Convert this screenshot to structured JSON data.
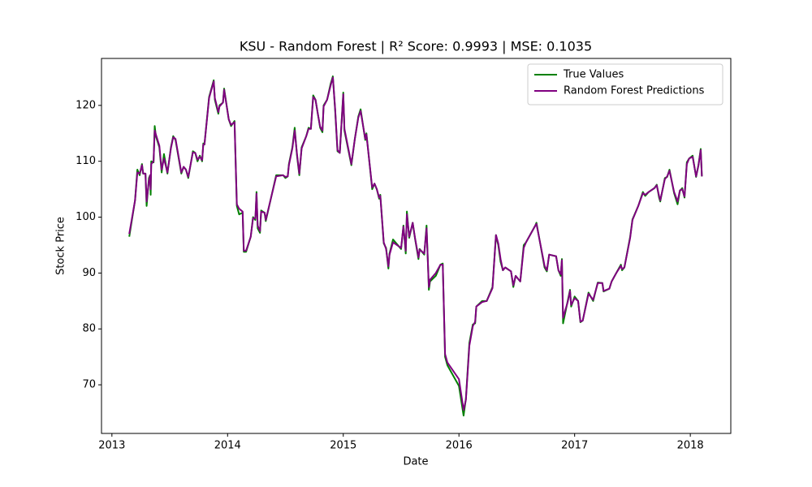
{
  "chart_data": {
    "type": "line",
    "title": "KSU - Random Forest | R² Score: 0.9993 | MSE: 0.1035",
    "x_label": "Date",
    "y_label": "Stock Price",
    "x": [
      2013.15,
      2013.2,
      2013.22,
      2013.24,
      2013.26,
      2013.27,
      2013.29,
      2013.3,
      2013.32,
      2013.33,
      2013.335,
      2013.34,
      2013.36,
      2013.37,
      2013.38,
      2013.41,
      2013.43,
      2013.45,
      2013.48,
      2013.51,
      2013.53,
      2013.55,
      2013.6,
      2013.62,
      2013.64,
      2013.66,
      2013.7,
      2013.72,
      2013.74,
      2013.76,
      2013.78,
      2013.79,
      2013.8,
      2013.84,
      2013.88,
      2013.89,
      2013.92,
      2013.93,
      2013.96,
      2013.97,
      2014.01,
      2014.03,
      2014.06,
      2014.08,
      2014.1,
      2014.13,
      2014.14,
      2014.16,
      2014.2,
      2014.22,
      2014.24,
      2014.25,
      2014.26,
      2014.28,
      2014.29,
      2014.32,
      2014.33,
      2014.42,
      2014.48,
      2014.5,
      2014.52,
      2014.53,
      2014.56,
      2014.58,
      2014.6,
      2014.62,
      2014.64,
      2014.68,
      2014.7,
      2014.72,
      2014.74,
      2014.76,
      2014.78,
      2014.8,
      2014.82,
      2014.83,
      2014.86,
      2014.89,
      2014.91,
      2014.93,
      2014.95,
      2014.97,
      2015.0,
      2015.01,
      2015.07,
      2015.1,
      2015.13,
      2015.15,
      2015.19,
      2015.2,
      2015.25,
      2015.27,
      2015.29,
      2015.31,
      2015.32,
      2015.35,
      2015.37,
      2015.39,
      2015.4,
      2015.43,
      2015.5,
      2015.52,
      2015.54,
      2015.55,
      2015.57,
      2015.6,
      2015.62,
      2015.65,
      2015.66,
      2015.7,
      2015.72,
      2015.74,
      2015.75,
      2015.8,
      2015.84,
      2015.86,
      2015.88,
      2015.9,
      2016.0,
      2016.04,
      2016.06,
      2016.09,
      2016.12,
      2016.14,
      2016.15,
      2016.2,
      2016.24,
      2016.29,
      2016.32,
      2016.34,
      2016.36,
      2016.38,
      2016.4,
      2016.45,
      2016.47,
      2016.49,
      2016.53,
      2016.56,
      2016.58,
      2016.66,
      2016.67,
      2016.74,
      2016.76,
      2016.78,
      2016.84,
      2016.86,
      2016.88,
      2016.89,
      2016.9,
      2016.94,
      2016.96,
      2016.97,
      2017.0,
      2017.03,
      2017.05,
      2017.07,
      2017.12,
      2017.16,
      2017.2,
      2017.24,
      2017.25,
      2017.3,
      2017.32,
      2017.36,
      2017.4,
      2017.41,
      2017.43,
      2017.48,
      2017.5,
      2017.55,
      2017.59,
      2017.61,
      2017.64,
      2017.69,
      2017.71,
      2017.73,
      2017.74,
      2017.78,
      2017.8,
      2017.82,
      2017.86,
      2017.89,
      2017.91,
      2017.93,
      2017.95,
      2017.97,
      2017.99,
      2018.02,
      2018.05,
      2018.07,
      2018.09,
      2018.1
    ],
    "series": [
      {
        "name": "True Values",
        "color": "#008000",
        "values": [
          96.5,
          103,
          108.5,
          107.5,
          109.5,
          107.8,
          107.8,
          102,
          107,
          107.5,
          104,
          110,
          109.8,
          116.3,
          114.5,
          112.5,
          108,
          111.3,
          107.8,
          112.5,
          114.5,
          113.8,
          107.8,
          109,
          108.5,
          107,
          111.8,
          111.5,
          110,
          111,
          110,
          113.2,
          113,
          121.5,
          124.5,
          121,
          118.5,
          120,
          120.5,
          123,
          117.5,
          116.3,
          117.2,
          102,
          100.5,
          100.8,
          93.8,
          93.8,
          96.5,
          100,
          99.5,
          104.5,
          98,
          97.2,
          101.2,
          100.8,
          99.3,
          107.5,
          107.5,
          107,
          107.3,
          109.5,
          112.5,
          116,
          111,
          107.5,
          112.5,
          114.5,
          116,
          115.8,
          121.8,
          121,
          118.5,
          116,
          115.2,
          120,
          121,
          123.8,
          125.2,
          119,
          111.8,
          111.5,
          122.3,
          115.5,
          109.3,
          114,
          118,
          119.3,
          113.8,
          115,
          105,
          106,
          105,
          103.3,
          104,
          95.3,
          94.5,
          90.8,
          93.5,
          96,
          94.3,
          98.5,
          93.5,
          101,
          96.3,
          99,
          96.2,
          92.5,
          94.3,
          93.3,
          98.5,
          87,
          88.5,
          89.5,
          91.5,
          91.7,
          75,
          73.5,
          69.8,
          64.5,
          67.5,
          77.5,
          80.8,
          81,
          84,
          85,
          85,
          87.5,
          96.8,
          95,
          92,
          90.5,
          91,
          90.3,
          87.5,
          89.5,
          88.5,
          95,
          95.5,
          98.5,
          99,
          91,
          90.3,
          93.3,
          93,
          90.5,
          89.5,
          92.5,
          81,
          85,
          87,
          84,
          85.8,
          85,
          81.2,
          81.5,
          86.5,
          85,
          88.3,
          88.2,
          86.7,
          87.2,
          88.5,
          90,
          91.5,
          90.5,
          91,
          96.5,
          99.6,
          102,
          104.5,
          103.8,
          104.5,
          105.2,
          105.8,
          103.5,
          102.8,
          107,
          107.2,
          108.5,
          104.3,
          102.3,
          104.7,
          105.2,
          103.5,
          109.8,
          110.5,
          111,
          107.2,
          109.3,
          112.2,
          107.3
        ]
      },
      {
        "name": "Random Forest Predictions",
        "color": "#800080",
        "values": [
          97,
          103,
          108,
          107.8,
          109.3,
          107.8,
          107.8,
          102.8,
          106.5,
          107.5,
          105,
          109.5,
          110,
          115.5,
          114.8,
          112.8,
          108.5,
          110.5,
          108,
          112.3,
          114.3,
          114,
          108,
          109,
          108.5,
          107.2,
          111.6,
          111.5,
          110.3,
          110.8,
          110.2,
          113,
          113,
          121.3,
          124.3,
          121.3,
          118.8,
          119.8,
          120.5,
          122.8,
          117.5,
          116.5,
          117,
          102.3,
          101.5,
          101,
          94,
          94,
          96.5,
          99.8,
          99.8,
          104.2,
          98.5,
          97.5,
          101,
          100.8,
          99.5,
          107.3,
          107.5,
          107.2,
          107.3,
          109.3,
          112.3,
          115.5,
          111.3,
          107.8,
          112.3,
          114.5,
          115.8,
          115.8,
          121.5,
          121,
          118.5,
          116.2,
          115.5,
          119.8,
          121,
          123.5,
          125,
          119.3,
          112,
          111.5,
          122,
          115.8,
          109.5,
          114,
          117.8,
          119,
          114,
          114.8,
          105.3,
          106,
          105,
          103.5,
          103.8,
          95.5,
          94.3,
          91.2,
          93.3,
          95.5,
          94.5,
          98.3,
          94,
          100.5,
          96.5,
          99,
          96.3,
          92.8,
          94.2,
          93.5,
          98,
          87.5,
          88.8,
          90,
          91.5,
          91.5,
          75.5,
          74,
          71,
          65.5,
          67.3,
          77,
          80.5,
          81.3,
          84,
          84.8,
          85,
          87.3,
          96.8,
          95.3,
          92.5,
          90.5,
          91,
          90.3,
          87.8,
          89.5,
          88.5,
          94.5,
          95.5,
          98.5,
          98.8,
          91.3,
          90.5,
          93.3,
          93,
          90.5,
          89.8,
          92.3,
          82,
          84.8,
          86.8,
          84.3,
          85.5,
          85,
          81.3,
          81.5,
          86.3,
          85.2,
          88.2,
          88.2,
          86.8,
          87.2,
          88.5,
          90,
          91.3,
          90.7,
          91,
          96.3,
          99.5,
          102,
          104.3,
          104,
          104.5,
          105.2,
          105.7,
          103.8,
          103,
          106.8,
          107.3,
          108.3,
          104.5,
          102.8,
          104.8,
          105,
          103.7,
          109.5,
          110.5,
          110.8,
          107.3,
          109.2,
          112,
          107.3
        ]
      }
    ],
    "xlim": [
      2012.91,
      2018.35
    ],
    "xticks": [
      2013,
      2014,
      2015,
      2016,
      2017,
      2018
    ],
    "ylim": [
      61.3,
      128.4
    ],
    "yticks": [
      70,
      80,
      90,
      100,
      110,
      120
    ],
    "legend": "upper right"
  }
}
